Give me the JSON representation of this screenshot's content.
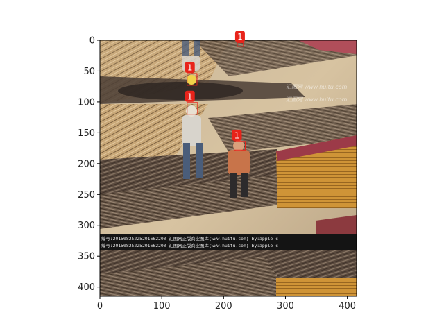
{
  "image_extent": {
    "x": [
      0,
      415
    ],
    "y": [
      0,
      415
    ]
  },
  "x_ticks": [
    0,
    100,
    200,
    300,
    400
  ],
  "y_ticks": [
    0,
    50,
    100,
    150,
    200,
    250,
    300,
    350,
    400
  ],
  "detections": [
    {
      "label": "1",
      "x": 222,
      "y": 4,
      "w": 10,
      "h": 6
    },
    {
      "label": "1",
      "x": 141,
      "y": 54,
      "w": 16,
      "h": 19
    },
    {
      "label": "1",
      "x": 141,
      "y": 101,
      "w": 17,
      "h": 19
    },
    {
      "label": "1",
      "x": 217,
      "y": 164,
      "w": 18,
      "h": 14
    }
  ],
  "watermarks": [
    "编号:20150825225201662200  汇图网正版商业图库(www.huitu.com) by:apple_c",
    "编号:20150825225201662200  汇图网正版商业图库(www.huitu.com) by:apple_c"
  ],
  "site_watermarks": [
    "汇图网 www.huitu.com",
    "汇图网 www.huitu.com"
  ],
  "colors": {
    "box": "#e8231a",
    "label_bg": "#e8231a",
    "label_text": "#ffffff"
  }
}
